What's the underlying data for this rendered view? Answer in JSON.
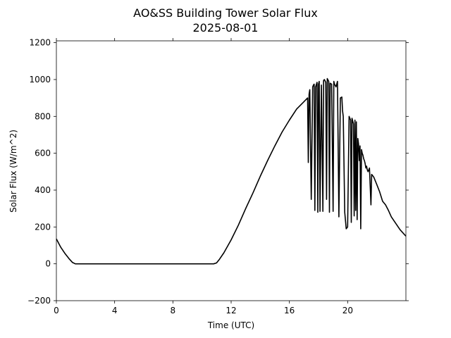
{
  "chart_data": {
    "type": "line",
    "title": "AO&SS Building Tower Solar Flux",
    "subtitle": "2025-08-01",
    "xlabel": "Time (UTC)",
    "ylabel": "Solar Flux (W/m^2)",
    "xlim": [
      0,
      24
    ],
    "ylim": [
      -200,
      1210
    ],
    "grid": false,
    "line_color": "#000000",
    "x_ticks": [
      0,
      4,
      8,
      12,
      16,
      20
    ],
    "x_tick_labels": [
      "0",
      "4",
      "8",
      "12",
      "16",
      "20"
    ],
    "y_ticks": [
      -200,
      0,
      200,
      400,
      600,
      800,
      1000,
      1200
    ],
    "y_tick_labels": [
      "−200",
      "0",
      "200",
      "400",
      "600",
      "800",
      "1000",
      "1200"
    ],
    "series": [
      {
        "x": [
          0,
          0.3,
          0.6,
          0.9,
          1.1,
          1.3,
          1.5,
          2,
          4,
          6,
          8,
          10,
          10.8,
          11.0,
          11.2,
          11.5,
          12,
          12.5,
          13,
          13.5,
          14,
          14.5,
          15,
          15.5,
          16,
          16.5,
          17,
          17.25,
          17.3,
          17.35,
          17.4,
          17.5,
          17.6,
          17.65,
          17.7,
          17.75,
          17.8,
          17.9,
          17.95,
          18.0,
          18.05,
          18.1,
          18.2,
          18.3,
          18.35,
          18.4,
          18.5,
          18.55,
          18.6,
          18.7,
          18.75,
          18.8,
          18.9,
          19.0,
          19.05,
          19.1,
          19.2,
          19.3,
          19.4,
          19.5,
          19.6,
          19.65,
          19.7,
          19.8,
          19.9,
          20.0,
          20.1,
          20.2,
          20.25,
          20.3,
          20.4,
          20.45,
          20.5,
          20.55,
          20.6,
          20.65,
          20.7,
          20.75,
          20.8,
          20.85,
          20.9,
          20.95,
          21.0,
          21.05,
          21.1,
          21.15,
          21.2,
          21.25,
          21.3,
          21.35,
          21.4,
          21.5,
          21.6,
          21.65,
          21.7,
          21.8,
          22.0,
          22.2,
          22.4,
          22.6,
          22.8,
          23.0,
          23.3,
          23.6,
          24.0
        ],
        "y": [
          135,
          90,
          55,
          25,
          8,
          0,
          0,
          0,
          0,
          0,
          0,
          0,
          0,
          5,
          25,
          60,
          130,
          210,
          300,
          385,
          475,
          560,
          640,
          715,
          780,
          840,
          880,
          900,
          550,
          920,
          945,
          350,
          960,
          970,
          975,
          290,
          960,
          985,
          280,
          975,
          990,
          285,
          970,
          285,
          995,
          1000,
          985,
          350,
          1005,
          990,
          280,
          980,
          975,
          285,
          990,
          975,
          960,
          990,
          255,
          900,
          905,
          830,
          800,
          280,
          190,
          200,
          800,
          780,
          225,
          790,
          760,
          260,
          780,
          290,
          770,
          240,
          680,
          650,
          560,
          640,
          190,
          620,
          600,
          590,
          570,
          560,
          545,
          520,
          530,
          510,
          500,
          520,
          320,
          485,
          480,
          470,
          430,
          390,
          340,
          320,
          290,
          255,
          220,
          185,
          150
        ]
      }
    ]
  }
}
